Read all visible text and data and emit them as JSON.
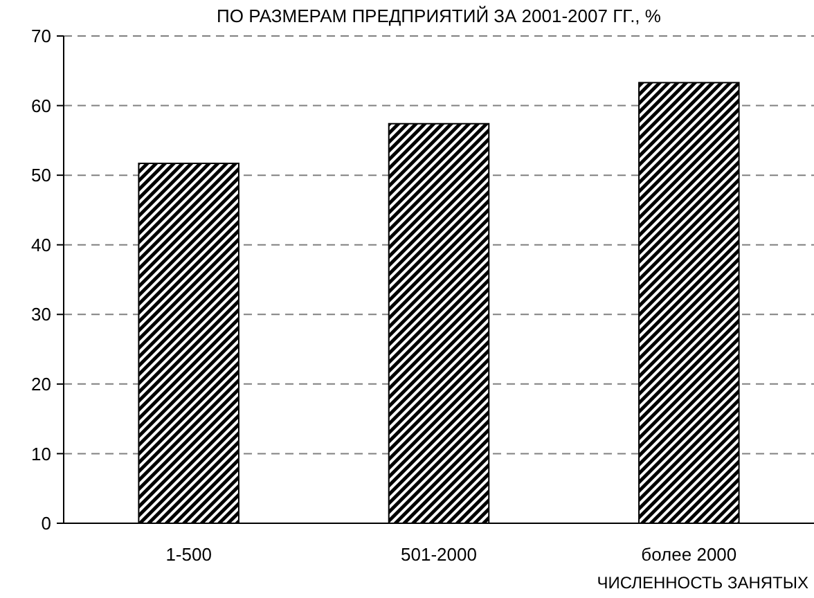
{
  "chart_data": {
    "type": "bar",
    "title": "ПО РАЗМЕРАМ ПРЕДПРИЯТИЙ ЗА 2001-2007 ГГ., %",
    "xlabel": "ЧИСЛЕННОСТЬ ЗАНЯТЫХ",
    "categories": [
      "1-500",
      "501-2000",
      "более 2000"
    ],
    "values": [
      51.7,
      57.4,
      63.3
    ],
    "color": "#000000",
    "ylim": [
      0,
      70
    ],
    "yticks": [
      0,
      10,
      20,
      30,
      40,
      50,
      60,
      70
    ],
    "grid": "y"
  }
}
